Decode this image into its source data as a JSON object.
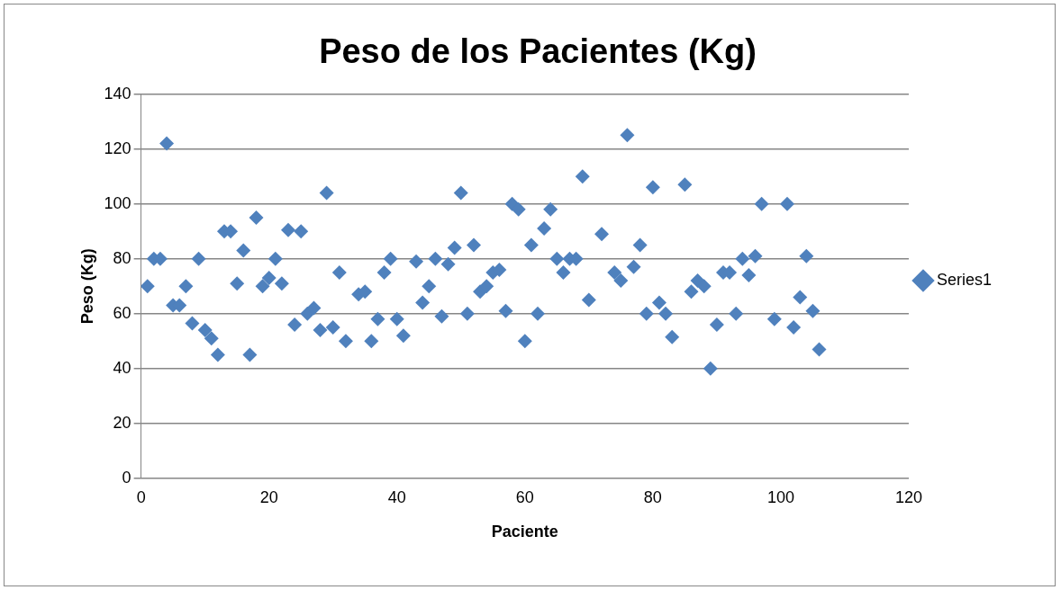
{
  "chart_data": {
    "type": "scatter",
    "title": "Peso de los Pacientes (Kg)",
    "xlabel": "Paciente",
    "ylabel": "Peso (Kg)",
    "xlim": [
      0,
      120
    ],
    "xticks": [
      0,
      20,
      40,
      60,
      80,
      100,
      120
    ],
    "ylim": [
      0,
      140
    ],
    "yticks": [
      0,
      20,
      40,
      60,
      80,
      100,
      120,
      140
    ],
    "grid": "y",
    "legend": "right",
    "marker": "diamond",
    "series": [
      {
        "name": "Series1",
        "color": "#4f81bd",
        "x": [
          1,
          2,
          3,
          4,
          5,
          6,
          7,
          8,
          9,
          10,
          11,
          12,
          13,
          14,
          15,
          16,
          17,
          18,
          19,
          20,
          21,
          22,
          23,
          24,
          25,
          26,
          27,
          28,
          29,
          30,
          31,
          32,
          34,
          35,
          36,
          37,
          38,
          39,
          40,
          41,
          43,
          44,
          45,
          46,
          47,
          48,
          49,
          50,
          51,
          52,
          53,
          54,
          55,
          56,
          57,
          58,
          59,
          60,
          61,
          62,
          63,
          64,
          65,
          66,
          67,
          68,
          69,
          70,
          72,
          74,
          75,
          76,
          77,
          78,
          79,
          80,
          81,
          82,
          83,
          85,
          86,
          87,
          88,
          89,
          90,
          91,
          92,
          93,
          94,
          95,
          96,
          97,
          99,
          101,
          102,
          103,
          104,
          105,
          106
        ],
        "values": [
          70,
          80,
          80,
          122,
          63,
          63,
          70,
          56.5,
          80,
          54,
          51,
          45,
          90,
          90,
          71,
          83,
          45,
          95,
          70,
          73,
          80,
          71,
          90.5,
          56,
          90,
          60,
          62,
          54,
          104,
          55,
          75,
          50,
          67,
          68,
          50,
          58,
          75,
          80,
          58,
          52,
          79,
          64,
          70,
          80,
          59,
          78,
          84,
          104,
          60,
          85,
          68,
          70,
          75,
          76,
          61,
          100,
          98,
          50,
          85,
          60,
          91,
          98,
          80,
          75,
          80,
          80,
          110,
          65,
          89,
          75,
          72,
          125,
          77,
          85,
          60,
          106,
          64,
          60,
          51.5,
          107,
          68,
          72,
          70,
          40,
          56,
          75,
          75,
          60,
          80,
          74,
          81,
          100,
          58,
          100,
          55,
          66,
          81,
          61,
          47
        ]
      }
    ]
  }
}
